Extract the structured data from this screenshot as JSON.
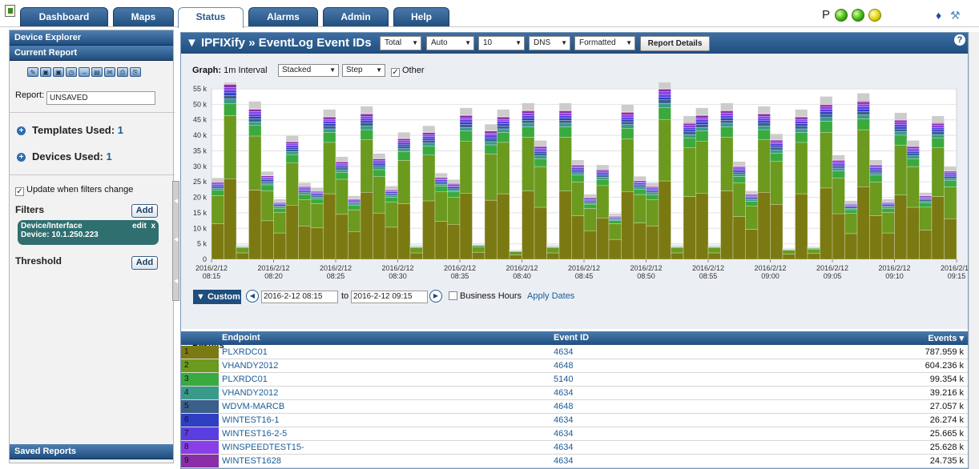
{
  "top_nav": {
    "tabs": [
      {
        "label": "Dashboard",
        "active": false
      },
      {
        "label": "Maps",
        "active": false
      },
      {
        "label": "Status",
        "active": true
      },
      {
        "label": "Alarms",
        "active": false
      },
      {
        "label": "Admin",
        "active": false
      },
      {
        "label": "Help",
        "active": false
      }
    ],
    "status_letter": "P",
    "status_lights": [
      "green",
      "green",
      "yellow"
    ],
    "icons": [
      "info-icon",
      "tools-icon"
    ]
  },
  "sidebar": {
    "device_explorer": "Device Explorer",
    "current_report": "Current Report",
    "report_label": "Report:",
    "report_value": "UNSAVED",
    "templates_label": "Templates Used:",
    "templates_value": "1",
    "devices_label": "Devices Used:",
    "devices_value": "1",
    "update_label": "Update when filters change",
    "update_checked": true,
    "filters_label": "Filters",
    "add_label": "Add",
    "filter": {
      "title": "Device/Interface",
      "edit": "edit",
      "remove": "x",
      "value": "Device: 10.1.250.223"
    },
    "threshold_label": "Threshold",
    "saved_reports": "Saved Reports"
  },
  "main": {
    "title": "▼ IPFIXify » EventLog Event IDs",
    "selects": [
      "Total",
      "Auto",
      "10",
      "DNS",
      "Formatted"
    ],
    "report_details": "Report Details",
    "help": "?",
    "graph_label": "Graph:",
    "graph_interval": "1m Interval",
    "graph_selects": [
      "Stacked",
      "Step"
    ],
    "other_label": "Other",
    "other_checked": true,
    "custom_label": "▼ Custom",
    "date_from": "2016-2-12 08:15",
    "date_to_label": "to",
    "date_to": "2016-2-12 09:15",
    "business_hours": "Business Hours",
    "apply_dates": "Apply Dates",
    "results_label": "Results",
    "table": {
      "headers": {
        "endpoint": "Endpoint",
        "event_id": "Event ID",
        "events": "Events ▾"
      },
      "rows": [
        {
          "rank": "1",
          "endpoint": "PLXRDC01",
          "event_id": "4634",
          "events": "787.959 k",
          "color": "#7b7a12"
        },
        {
          "rank": "2",
          "endpoint": "VHANDY2012",
          "event_id": "4648",
          "events": "604.236 k",
          "color": "#6b9a1e"
        },
        {
          "rank": "3",
          "endpoint": "PLXRDC01",
          "event_id": "5140",
          "events": "99.354 k",
          "color": "#3aaa3f"
        },
        {
          "rank": "4",
          "endpoint": "VHANDY2012",
          "event_id": "4634",
          "events": "39.216 k",
          "color": "#3a9a8a"
        },
        {
          "rank": "5",
          "endpoint": "WDVM-MARCB",
          "event_id": "4648",
          "events": "27.057 k",
          "color": "#3a5f8a"
        },
        {
          "rank": "6",
          "endpoint": "WINTEST16-1",
          "event_id": "4634",
          "events": "26.274 k",
          "color": "#2f3fc4"
        },
        {
          "rank": "7",
          "endpoint": "WINTEST16-2-5",
          "event_id": "4634",
          "events": "25.665 k",
          "color": "#5a3ee0"
        },
        {
          "rank": "8",
          "endpoint": "WINSPEEDTEST15-",
          "event_id": "4634",
          "events": "25.628 k",
          "color": "#8a3ee8"
        },
        {
          "rank": "9",
          "endpoint": "WINTEST1628",
          "event_id": "4634",
          "events": "24.735 k",
          "color": "#8a2fa8"
        }
      ]
    }
  },
  "chart_data": {
    "type": "area",
    "stacked": true,
    "step": true,
    "y_tick_labels": [
      "0",
      "5 k",
      "10 k",
      "15 k",
      "20 k",
      "25 k",
      "30 k",
      "35 k",
      "40 k",
      "45 k",
      "50 k",
      "55 k"
    ],
    "ylim": [
      0,
      55000
    ],
    "x_tick_labels": [
      [
        "2016/2/12",
        "08:15"
      ],
      [
        "2016/2/12",
        "08:20"
      ],
      [
        "2016/2/12",
        "08:25"
      ],
      [
        "2016/2/12",
        "08:30"
      ],
      [
        "2016/2/12",
        "08:35"
      ],
      [
        "2016/2/12",
        "08:40"
      ],
      [
        "2016/2/12",
        "08:45"
      ],
      [
        "2016/2/12",
        "08:50"
      ],
      [
        "2016/2/12",
        "08:55"
      ],
      [
        "2016/2/12",
        "09:00"
      ],
      [
        "2016/2/12",
        "09:05"
      ],
      [
        "2016/2/12",
        "09:10"
      ],
      [
        "2016/2/12",
        "09:15"
      ]
    ],
    "grid": true,
    "series_colors": [
      "#7b7a12",
      "#6b9a1e",
      "#3aaa3f",
      "#3a9a8a",
      "#3a5f8a",
      "#2f3fc4",
      "#5a3ee0",
      "#8a3ee8",
      "#8a2fa8",
      "#b54a9a",
      "#cccccc"
    ],
    "totals": [
      25000,
      56500,
      4500,
      48500,
      27000,
      18500,
      38000,
      23500,
      22000,
      46000,
      31500,
      19500,
      47000,
      32500,
      22500,
      39000,
      4500,
      41000,
      26500,
      24500,
      46500,
      5000,
      41500,
      46000,
      3000,
      48000,
      36500,
      4500,
      48000,
      30500,
      20000,
      29000,
      14000,
      47500,
      25500,
      23500,
      55000,
      4500,
      44000,
      46500,
      4500,
      48000,
      30000,
      21000,
      47000,
      38500,
      3500,
      46000,
      4000,
      50000,
      32000,
      18000,
      51000,
      30500,
      18500,
      45000,
      36500,
      20500,
      44000,
      28500
    ]
  }
}
